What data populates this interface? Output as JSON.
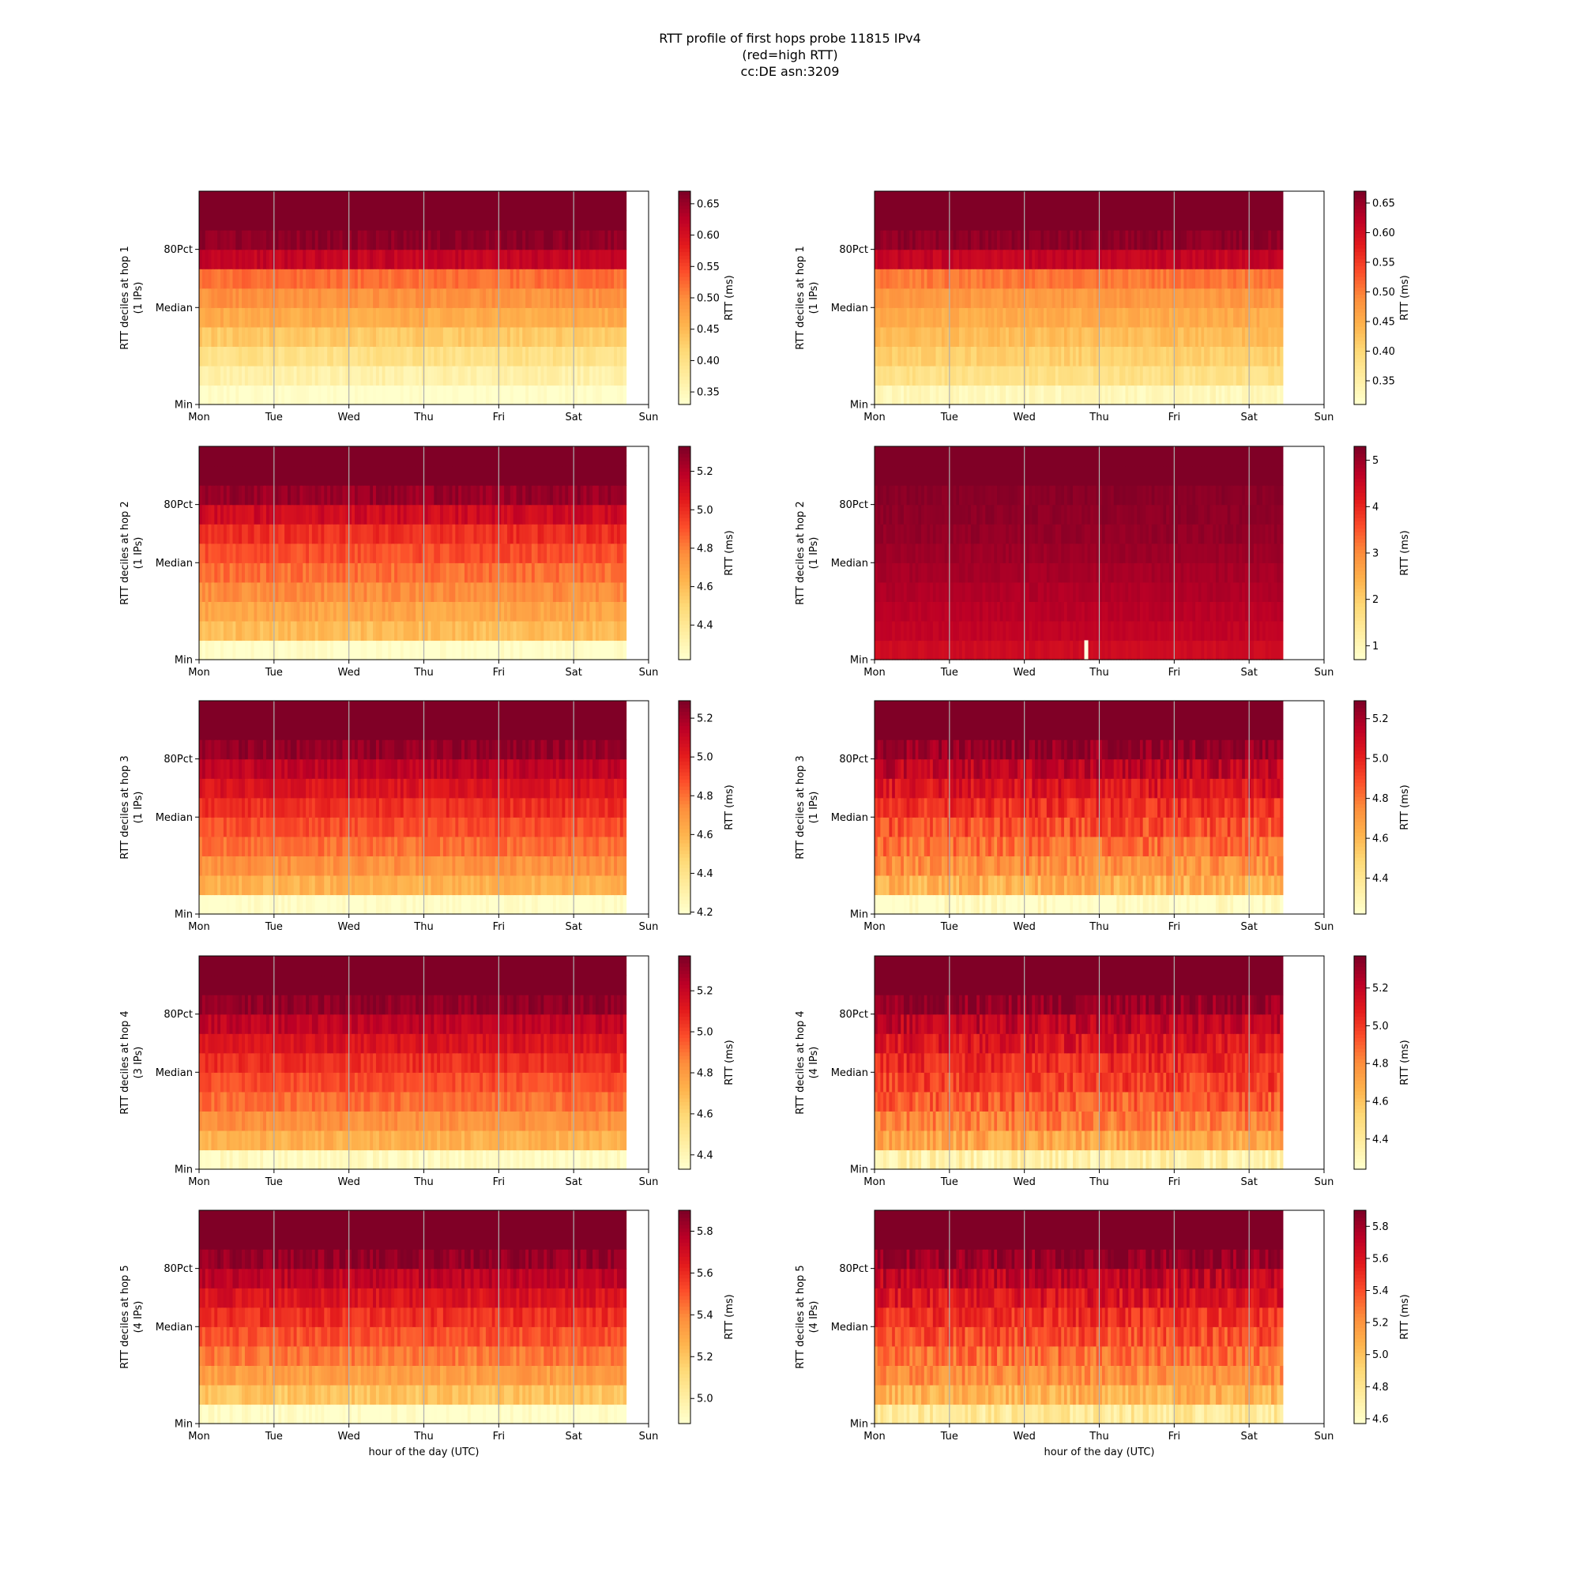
{
  "title": {
    "line1": "RTT profile of first hops probe 11815 IPv4",
    "line2": "(red=high RTT)",
    "line3": "cc:DE asn:3209"
  },
  "colors": {
    "cmap": [
      "#ffffcc",
      "#ffeda0",
      "#fed976",
      "#feb24c",
      "#fd8d3c",
      "#fc4e2a",
      "#e31a1c",
      "#bd0026",
      "#800026"
    ],
    "gridline": "#b0b0b0",
    "axis": "#000000"
  },
  "chart_data": {
    "type": "heatmap",
    "layout": "5 rows x 2 columns",
    "x_tick_labels": [
      "Mon",
      "Tue",
      "Wed",
      "Thu",
      "Fri",
      "Sat",
      "Sun"
    ],
    "y_tick_labels": [
      "Min",
      "Median",
      "80Pct"
    ],
    "xlabel_bottom": "hour of the day (UTC)",
    "colorbar_label": "RTT (ms)",
    "grid": "vertical lines at day boundaries",
    "panels": [
      {
        "ylabel": "RTT deciles at hop 1",
        "ips": "(1 IPs)",
        "x_end_days": 5.7,
        "cbar_ticks": [
          "0.35",
          "0.40",
          "0.45",
          "0.50",
          "0.55",
          "0.60",
          "0.65"
        ],
        "cbar_range": [
          0.33,
          0.67
        ],
        "band_levels": [
          0.0,
          0.1,
          0.2,
          0.3,
          0.4,
          0.48,
          0.56,
          0.85,
          0.97,
          1.0
        ],
        "noise": 0.04
      },
      {
        "ylabel": "RTT deciles at hop 1",
        "ips": "(1 IPs)",
        "x_end_days": 5.45,
        "cbar_ticks": [
          "0.35",
          "0.40",
          "0.45",
          "0.50",
          "0.55",
          "0.60",
          "0.65"
        ],
        "cbar_range": [
          0.31,
          0.67
        ],
        "band_levels": [
          0.05,
          0.2,
          0.28,
          0.34,
          0.4,
          0.46,
          0.54,
          0.85,
          0.97,
          1.0
        ],
        "noise": 0.04
      },
      {
        "ylabel": "RTT deciles at hop 2",
        "ips": "(1 IPs)",
        "x_end_days": 5.7,
        "cbar_ticks": [
          "4.4",
          "4.6",
          "4.8",
          "5.0",
          "5.2"
        ],
        "cbar_range": [
          4.22,
          5.33
        ],
        "band_levels": [
          0.0,
          0.34,
          0.42,
          0.49,
          0.56,
          0.63,
          0.7,
          0.82,
          0.95,
          1.0
        ],
        "noise": 0.05
      },
      {
        "ylabel": "RTT deciles at hop 2",
        "ips": "(1 IPs)",
        "x_end_days": 5.45,
        "cbar_ticks": [
          "1",
          "2",
          "3",
          "4",
          "5"
        ],
        "cbar_range": [
          0.7,
          5.3
        ],
        "band_levels": [
          0.82,
          0.86,
          0.88,
          0.9,
          0.92,
          0.94,
          0.96,
          0.97,
          0.98,
          1.0
        ],
        "noise": 0.02
      },
      {
        "ylabel": "RTT deciles at hop 3",
        "ips": "(1 IPs)",
        "x_end_days": 5.7,
        "cbar_ticks": [
          "4.2",
          "4.4",
          "4.6",
          "4.8",
          "5.0",
          "5.2"
        ],
        "cbar_range": [
          4.19,
          5.29
        ],
        "band_levels": [
          0.0,
          0.38,
          0.48,
          0.56,
          0.63,
          0.7,
          0.78,
          0.86,
          0.96,
          1.0
        ],
        "noise": 0.05
      },
      {
        "ylabel": "RTT deciles at hop 3",
        "ips": "(1 IPs)",
        "x_end_days": 5.45,
        "cbar_ticks": [
          "4.4",
          "4.6",
          "4.8",
          "5.0",
          "5.2"
        ],
        "cbar_range": [
          4.22,
          5.29
        ],
        "band_levels": [
          0.0,
          0.38,
          0.48,
          0.56,
          0.63,
          0.7,
          0.78,
          0.86,
          0.96,
          1.0
        ],
        "noise": 0.09
      },
      {
        "ylabel": "RTT deciles at hop 4",
        "ips": "(3 IPs)",
        "x_end_days": 5.7,
        "cbar_ticks": [
          "4.4",
          "4.6",
          "4.8",
          "5.0",
          "5.2"
        ],
        "cbar_range": [
          4.33,
          5.37
        ],
        "band_levels": [
          0.03,
          0.38,
          0.48,
          0.56,
          0.63,
          0.7,
          0.78,
          0.86,
          0.96,
          1.0
        ],
        "noise": 0.05
      },
      {
        "ylabel": "RTT deciles at hop 4",
        "ips": "(4 IPs)",
        "x_end_days": 5.45,
        "cbar_ticks": [
          "4.4",
          "4.6",
          "4.8",
          "5.0",
          "5.2"
        ],
        "cbar_range": [
          4.24,
          5.37
        ],
        "band_levels": [
          0.1,
          0.42,
          0.52,
          0.6,
          0.66,
          0.72,
          0.78,
          0.86,
          0.96,
          1.0
        ],
        "noise": 0.09
      },
      {
        "ylabel": "RTT deciles at hop 5",
        "ips": "(4 IPs)",
        "x_end_days": 5.7,
        "cbar_ticks": [
          "5.0",
          "5.2",
          "5.4",
          "5.6",
          "5.8"
        ],
        "cbar_range": [
          4.88,
          5.9
        ],
        "band_levels": [
          0.0,
          0.32,
          0.44,
          0.54,
          0.62,
          0.7,
          0.78,
          0.86,
          0.96,
          1.0
        ],
        "noise": 0.06
      },
      {
        "ylabel": "RTT deciles at hop 5",
        "ips": "(4 IPs)",
        "x_end_days": 5.45,
        "cbar_ticks": [
          "4.6",
          "4.8",
          "5.0",
          "5.2",
          "5.4",
          "5.6",
          "5.8"
        ],
        "cbar_range": [
          4.57,
          5.9
        ],
        "band_levels": [
          0.15,
          0.38,
          0.48,
          0.56,
          0.63,
          0.7,
          0.78,
          0.86,
          0.96,
          1.0
        ],
        "noise": 0.09
      }
    ]
  }
}
